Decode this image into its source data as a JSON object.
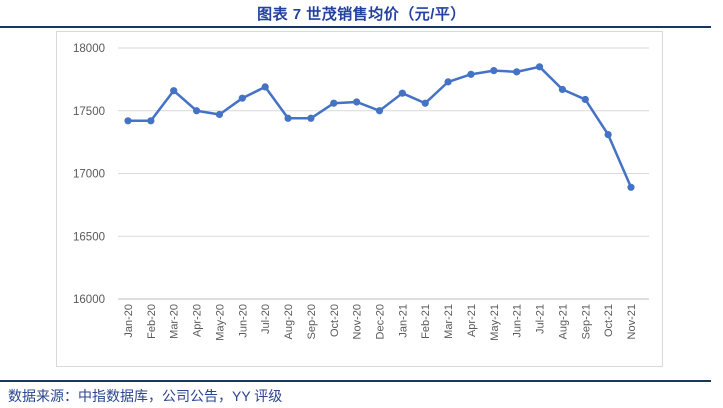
{
  "header": {
    "title": "图表 7  世茂销售均价（元/平）"
  },
  "footer": {
    "source_text": "数据来源：中指数据库，公司公告，YY 评级"
  },
  "colors": {
    "title_text": "#2441a0",
    "footer_text": "#2b4490",
    "divider": "#17375e",
    "series_line": "#4472c4",
    "gridline": "#d9d9d9",
    "axis_line": "#bfbfbf",
    "tick_label": "#595959",
    "chart_border": "#d9d9d9"
  },
  "chart_data": {
    "type": "line",
    "title": "图表 7  世茂销售均价（元/平）",
    "xlabel": "",
    "ylabel": "",
    "ylim": [
      16000,
      18000
    ],
    "yticks": [
      16000,
      16500,
      17000,
      17500,
      18000
    ],
    "grid": "horizontal",
    "legend": "none",
    "marker": "circle",
    "categories": [
      "Jan-20",
      "Feb-20",
      "Mar-20",
      "Apr-20",
      "May-20",
      "Jun-20",
      "Jul-20",
      "Aug-20",
      "Sep-20",
      "Oct-20",
      "Nov-20",
      "Dec-20",
      "Jan-21",
      "Feb-21",
      "Mar-21",
      "Apr-21",
      "May-21",
      "Jun-21",
      "Jul-21",
      "Aug-21",
      "Sep-21",
      "Oct-21",
      "Nov-21"
    ],
    "series": [
      {
        "name": "世茂销售均价",
        "values": [
          17420,
          17420,
          17660,
          17500,
          17470,
          17600,
          17690,
          17440,
          17440,
          17560,
          17570,
          17500,
          17640,
          17560,
          17730,
          17790,
          17820,
          17810,
          17850,
          17670,
          17590,
          17310,
          16890
        ]
      }
    ]
  }
}
